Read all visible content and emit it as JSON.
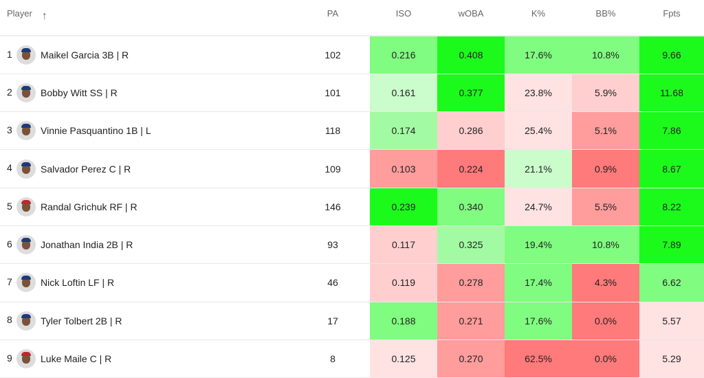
{
  "headers": {
    "player": "Player",
    "pa": "PA",
    "iso": "ISO",
    "woba": "wOBA",
    "k": "K%",
    "bb": "BB%",
    "fpts": "Fpts"
  },
  "colors": {
    "sg": "#1cfa1c",
    "mg": "#80fc80",
    "lg2": "#a2fba2",
    "lg": "#cbfccb",
    "lp": "#ffe2e2",
    "p": "#ffcfcf",
    "mr": "#ff9c9c",
    "sr": "#ff7a7a"
  },
  "rows": [
    {
      "rank": "1",
      "name": "Maikel Garcia 3B | R",
      "pa": "102",
      "iso": "0.216",
      "woba": "0.408",
      "k": "17.6%",
      "bb": "10.8%",
      "fpts": "9.66",
      "heat": [
        "mg",
        "sg",
        "mg",
        "mg",
        "sg"
      ],
      "cap": "#1d3a7a"
    },
    {
      "rank": "2",
      "name": "Bobby Witt SS | R",
      "pa": "101",
      "iso": "0.161",
      "woba": "0.377",
      "k": "23.8%",
      "bb": "5.9%",
      "fpts": "11.68",
      "heat": [
        "lg",
        "sg",
        "lp",
        "p",
        "sg"
      ],
      "cap": "#1d3a7a"
    },
    {
      "rank": "3",
      "name": "Vinnie Pasquantino 1B | L",
      "pa": "118",
      "iso": "0.174",
      "woba": "0.286",
      "k": "25.4%",
      "bb": "5.1%",
      "fpts": "7.86",
      "heat": [
        "lg2",
        "p",
        "lp",
        "mr",
        "sg"
      ],
      "cap": "#1d3a7a"
    },
    {
      "rank": "4",
      "name": "Salvador Perez C | R",
      "pa": "109",
      "iso": "0.103",
      "woba": "0.224",
      "k": "21.1%",
      "bb": "0.9%",
      "fpts": "8.67",
      "heat": [
        "mr",
        "sr",
        "lg",
        "sr",
        "sg"
      ],
      "cap": "#1d3a7a"
    },
    {
      "rank": "5",
      "name": "Randal Grichuk RF | R",
      "pa": "146",
      "iso": "0.239",
      "woba": "0.340",
      "k": "24.7%",
      "bb": "5.5%",
      "fpts": "8.22",
      "heat": [
        "sg",
        "mg",
        "lp",
        "mr",
        "sg"
      ],
      "cap": "#c0262d"
    },
    {
      "rank": "6",
      "name": "Jonathan India 2B | R",
      "pa": "93",
      "iso": "0.117",
      "woba": "0.325",
      "k": "19.4%",
      "bb": "10.8%",
      "fpts": "7.89",
      "heat": [
        "p",
        "lg2",
        "mg",
        "mg",
        "sg"
      ],
      "cap": "#1d3a7a"
    },
    {
      "rank": "7",
      "name": "Nick Loftin LF | R",
      "pa": "46",
      "iso": "0.119",
      "woba": "0.278",
      "k": "17.4%",
      "bb": "4.3%",
      "fpts": "6.62",
      "heat": [
        "p",
        "mr",
        "mg",
        "sr",
        "mg"
      ],
      "cap": "#1d3a7a"
    },
    {
      "rank": "8",
      "name": "Tyler Tolbert 2B | R",
      "pa": "17",
      "iso": "0.188",
      "woba": "0.271",
      "k": "17.6%",
      "bb": "0.0%",
      "fpts": "5.57",
      "heat": [
        "mg",
        "mr",
        "mg",
        "sr",
        "lp"
      ],
      "cap": "#1d3a7a"
    },
    {
      "rank": "9",
      "name": "Luke Maile C | R",
      "pa": "8",
      "iso": "0.125",
      "woba": "0.270",
      "k": "62.5%",
      "bb": "0.0%",
      "fpts": "5.29",
      "heat": [
        "lp",
        "mr",
        "sr",
        "sr",
        "lp"
      ],
      "cap": "#c0262d"
    }
  ]
}
